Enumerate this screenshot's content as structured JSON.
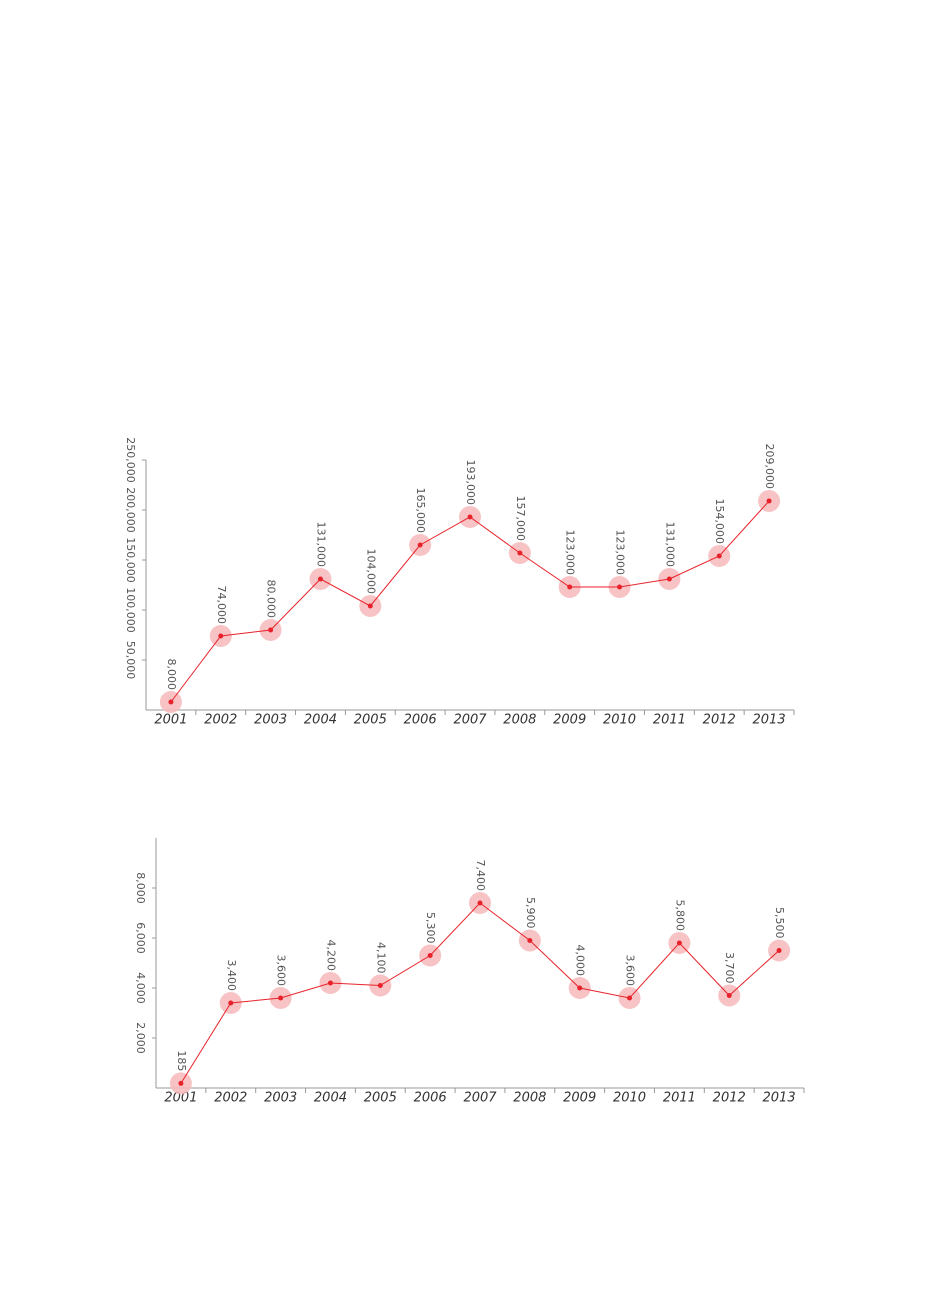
{
  "chart_data": [
    {
      "type": "line",
      "color": "#e8222a",
      "categories": [
        "2001",
        "2002",
        "2003",
        "2004",
        "2005",
        "2006",
        "2007",
        "2008",
        "2009",
        "2010",
        "2011",
        "2012",
        "2013"
      ],
      "values": [
        8000,
        74000,
        80000,
        131000,
        104000,
        165000,
        193000,
        157000,
        123000,
        123000,
        131000,
        154000,
        209000
      ],
      "value_labels": [
        "8,000",
        "74,000",
        "80,000",
        "131,000",
        "104,000",
        "165,000",
        "193,000",
        "157,000",
        "123,000",
        "123,000",
        "131,000",
        "154,000",
        "209,000"
      ],
      "ylim": [
        0,
        250000
      ],
      "yticks": [
        {
          "value": 50000,
          "label": "50,000"
        },
        {
          "value": 100000,
          "label": "100,000"
        },
        {
          "value": 150000,
          "label": "150,000"
        },
        {
          "value": 200000,
          "label": "200,000"
        },
        {
          "value": 250000,
          "label": "250,000"
        }
      ]
    },
    {
      "type": "line",
      "color": "#e8222a",
      "categories": [
        "2001",
        "2002",
        "2003",
        "2004",
        "2005",
        "2006",
        "2007",
        "2008",
        "2009",
        "2010",
        "2011",
        "2012",
        "2013"
      ],
      "values": [
        185,
        3400,
        3600,
        4200,
        4100,
        5300,
        7400,
        5900,
        4000,
        3600,
        5800,
        3700,
        5500
      ],
      "value_labels": [
        "185",
        "3,400",
        "3,600",
        "4,200",
        "4,100",
        "5,300",
        "7,400",
        "5,900",
        "4,000",
        "3,600",
        "5,800",
        "3,700",
        "5,500"
      ],
      "ylim": [
        0,
        10000
      ],
      "yticks": [
        {
          "value": 2000,
          "label": "2,000"
        },
        {
          "value": 4000,
          "label": "4,000"
        },
        {
          "value": 6000,
          "label": "6,000"
        },
        {
          "value": 8000,
          "label": "8,000"
        }
      ]
    }
  ]
}
